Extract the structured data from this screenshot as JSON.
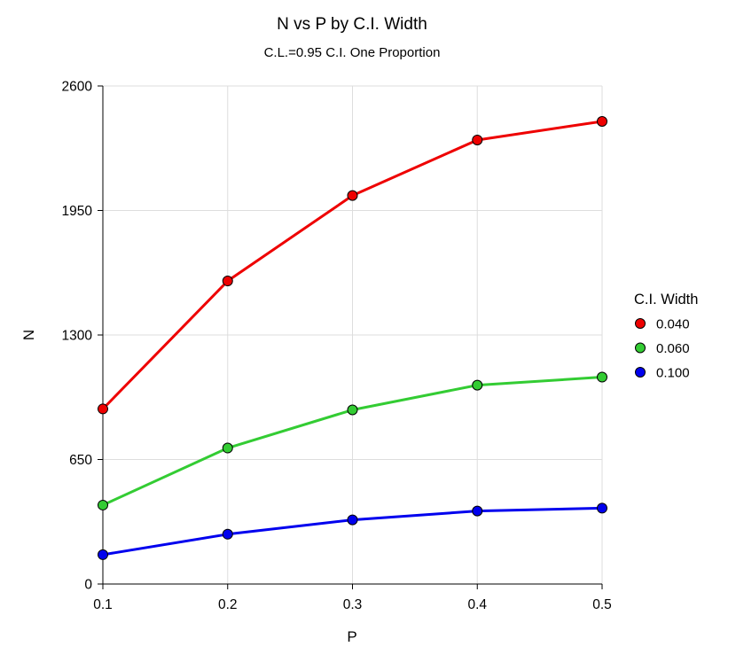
{
  "chart_data": {
    "type": "line",
    "title": "N vs P by C.I. Width",
    "subtitle": "C.L.=0.95 C.I. One Proportion",
    "xlabel": "P",
    "ylabel": "N",
    "x": [
      0.1,
      0.2,
      0.3,
      0.4,
      0.5
    ],
    "x_tick_labels": [
      "0.1",
      "0.2",
      "0.3",
      "0.4",
      "0.5"
    ],
    "y_ticks": [
      0,
      650,
      1300,
      1950,
      2600
    ],
    "y_tick_labels": [
      "0",
      "650",
      "1300",
      "1950",
      "2600"
    ],
    "xlim": [
      0.1,
      0.5
    ],
    "ylim": [
      0,
      2600
    ],
    "grid": true,
    "legend_title": "C.I. Width",
    "legend_position": "right",
    "series": [
      {
        "name": "0.040",
        "color": "#ee0000",
        "values": [
          914,
          1582,
          2028,
          2318,
          2415
        ]
      },
      {
        "name": "0.060",
        "color": "#33cc33",
        "values": [
          412,
          710,
          909,
          1038,
          1080
        ]
      },
      {
        "name": "0.100",
        "color": "#0000ee",
        "values": [
          153,
          260,
          335,
          381,
          396
        ]
      }
    ]
  }
}
